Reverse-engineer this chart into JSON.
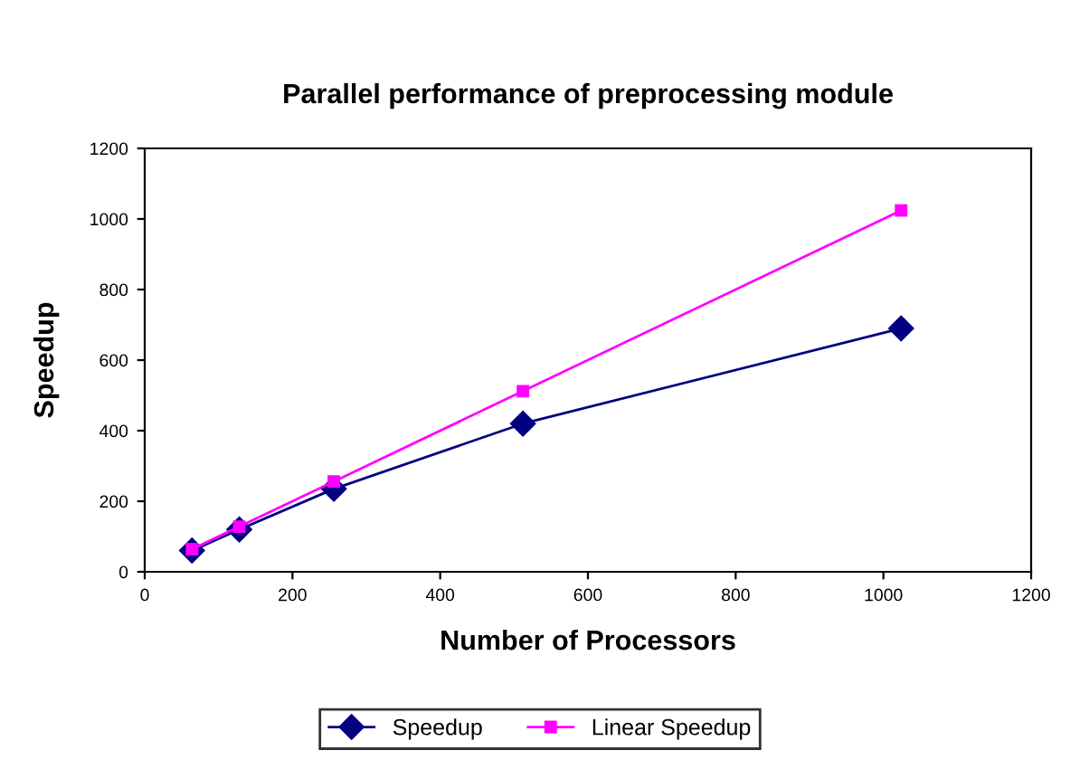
{
  "chart_data": {
    "type": "line",
    "title": "Parallel performance of preprocessing module",
    "xlabel": "Number of Processors",
    "ylabel": "Speedup",
    "x": [
      64,
      128,
      256,
      512,
      1024
    ],
    "series": [
      {
        "name": "Speedup",
        "color": "#000080",
        "marker": "diamond",
        "values": [
          60,
          120,
          235,
          420,
          690
        ]
      },
      {
        "name": "Linear Speedup",
        "color": "#ff00ff",
        "marker": "square",
        "values": [
          64,
          128,
          256,
          512,
          1024
        ]
      }
    ],
    "xlim": [
      0,
      1200
    ],
    "xticks": [
      0,
      200,
      400,
      600,
      800,
      1000,
      1200
    ],
    "ylim": [
      0,
      1200
    ],
    "yticks": [
      0,
      200,
      400,
      600,
      800,
      1000,
      1200
    ],
    "grid": false,
    "legend": "bottom",
    "line_style": "solid"
  }
}
